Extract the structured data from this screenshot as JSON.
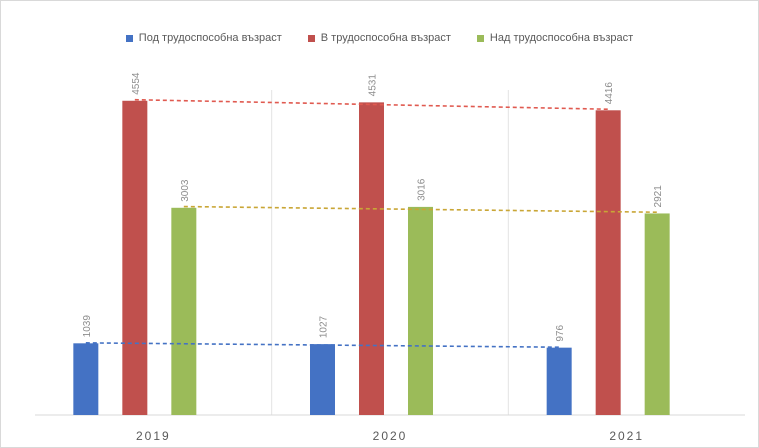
{
  "chart_data": {
    "type": "bar",
    "categories": [
      "2019",
      "2020",
      "2021"
    ],
    "series": [
      {
        "name": "Под трудоспособна възраст",
        "values": [
          1039,
          1027,
          976
        ],
        "color": "#4472c4",
        "trend_color": "#4472c4"
      },
      {
        "name": "В трудоспособна възраст",
        "values": [
          4554,
          4531,
          4416
        ],
        "color": "#c0504d",
        "trend_color": "#e05a50"
      },
      {
        "name": "Над трудоспособна възраст",
        "values": [
          3003,
          3016,
          2921
        ],
        "color": "#9bbb59",
        "trend_color": "#c9a636"
      }
    ],
    "title": "",
    "xlabel": "",
    "ylabel": "",
    "ylim": [
      0,
      5000
    ],
    "legend_position": "top",
    "trendlines": true,
    "data_labels": true,
    "grid": false,
    "category_separators": true
  }
}
